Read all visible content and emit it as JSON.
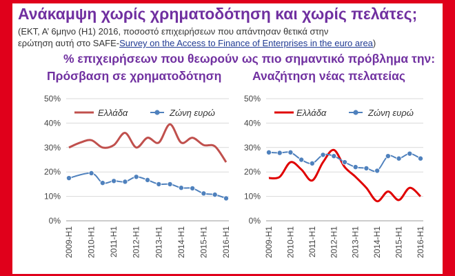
{
  "header": {
    "title": "Ανάκαμψη χωρίς χρηματοδότηση και χωρίς πελάτες;",
    "subtitle_line1": "(ΕΚΤ, Α’ 6μηνο (Η1) 2016, ποσοστό επιχειρήσεων που απάντησαν θετικά στην",
    "subtitle_line2_prefix": "ερώτηση αυτή στο SAFE-",
    "subtitle_line2_link": "Survey on the Access to Finance of Enterprises in the euro area",
    "subtitle_line2_suffix": ")",
    "question": "% επιχειρήσεων που θεωρούν ως πιο σημαντικό πρόβλημα την:"
  },
  "colors": {
    "background": "#e0001b",
    "title": "#7030a0",
    "greece_left": "#c0504d",
    "greece_right": "#e00000",
    "euro_area": "#4f81bd"
  },
  "chart_data": [
    {
      "type": "line",
      "title": "Πρόσβαση σε χρηματοδότηση",
      "y_ticks": [
        "0%",
        "10%",
        "20%",
        "30%",
        "40%",
        "50%"
      ],
      "x_ticks": [
        "2009-H1",
        "2010-H1",
        "2011-H1",
        "2012-H1",
        "2013-H1",
        "2014-H1",
        "2015-H1",
        "2016-H1"
      ],
      "ylim": [
        0,
        50
      ],
      "legend": "top",
      "series": [
        {
          "name": "Ελλάδα",
          "color": "#c0504d",
          "markers": false,
          "x": [
            "2009-H1",
            "2009-H2",
            "2010-H1",
            "2010-H2",
            "2011-H1",
            "2011-H2",
            "2012-H1",
            "2012-H2",
            "2013-H1",
            "2013-H2",
            "2014-H1",
            "2014-H2",
            "2015-H1",
            "2015-H2",
            "2016-H1"
          ],
          "values": [
            30,
            32,
            33,
            30,
            31,
            36,
            30,
            34,
            32,
            39.5,
            32,
            34,
            31,
            30.5,
            24
          ]
        },
        {
          "name": "Ζώνη ευρώ",
          "color": "#4f81bd",
          "markers": true,
          "x": [
            "2009-H1",
            "2010-H1",
            "2010-H2",
            "2011-H1",
            "2011-H2",
            "2012-H1",
            "2012-H2",
            "2013-H1",
            "2013-H2",
            "2014-H1",
            "2014-H2",
            "2015-H1",
            "2015-H2",
            "2016-H1"
          ],
          "values": [
            17.5,
            19.5,
            15.5,
            16.3,
            16,
            18,
            16.7,
            15,
            15,
            13.5,
            13.3,
            11.2,
            10.7,
            9.2
          ]
        }
      ]
    },
    {
      "type": "line",
      "title": "Αναζήτηση νέας πελατείας",
      "y_ticks": [
        "0%",
        "10%",
        "20%",
        "30%",
        "40%",
        "50%"
      ],
      "x_ticks": [
        "2009-H1",
        "2010-H1",
        "2011-H1",
        "2012-H1",
        "2013-H1",
        "2014-H1",
        "2015-H1",
        "2016-H1"
      ],
      "ylim": [
        0,
        50
      ],
      "legend": "top",
      "series": [
        {
          "name": "Ελλάδα",
          "color": "#e00000",
          "markers": false,
          "x": [
            "2009-H1",
            "2009-H2",
            "2010-H1",
            "2010-H2",
            "2011-H1",
            "2011-H2",
            "2012-H1",
            "2012-H2",
            "2013-H1",
            "2013-H2",
            "2014-H1",
            "2014-H2",
            "2015-H1",
            "2015-H2",
            "2016-H1"
          ],
          "values": [
            17.5,
            18,
            24,
            21,
            16.5,
            24,
            29,
            22,
            18,
            13.5,
            8,
            12,
            8.5,
            13.5,
            10
          ]
        },
        {
          "name": "Ζώνη ευρώ",
          "color": "#4f81bd",
          "markers": true,
          "x": [
            "2009-H1",
            "2009-H2",
            "2010-H1",
            "2010-H2",
            "2011-H1",
            "2011-H2",
            "2012-H1",
            "2012-H2",
            "2013-H1",
            "2013-H2",
            "2014-H1",
            "2014-H2",
            "2015-H1",
            "2015-H2",
            "2016-H1"
          ],
          "values": [
            28,
            27.8,
            28,
            25,
            23.5,
            27,
            26.5,
            24,
            22,
            21.5,
            20.5,
            26.5,
            25.5,
            27.5,
            25.5
          ]
        }
      ]
    }
  ]
}
